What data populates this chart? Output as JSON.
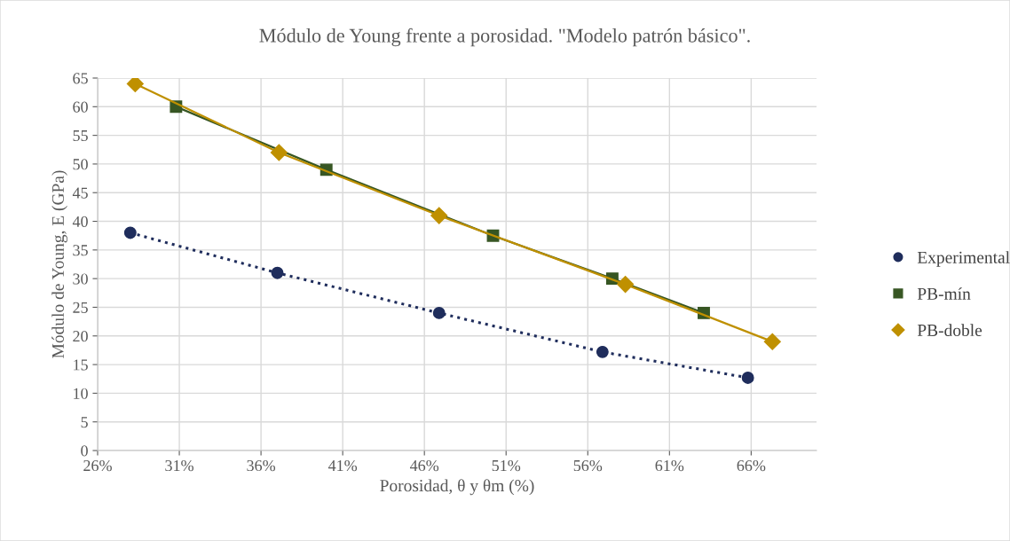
{
  "chart_data": {
    "type": "line",
    "title": "Módulo de Young frente a porosidad. \"Modelo patrón básico\".",
    "xlabel": "Porosidad, θ y θm (%)",
    "ylabel": "Módulo de Young, E (GPa)",
    "series": [
      {
        "name": "Experimental",
        "color": "#1f2d5c",
        "marker": "circle",
        "line_style": "dotted",
        "x": [
          28.0,
          37.0,
          46.9,
          56.9,
          65.8
        ],
        "values": [
          38,
          31,
          24,
          17.2,
          12.7
        ]
      },
      {
        "name": "PB-mín",
        "color": "#375623",
        "marker": "square",
        "line_style": "solid",
        "x": [
          30.8,
          40.0,
          50.2,
          57.5,
          63.1
        ],
        "values": [
          60,
          49,
          37.5,
          30,
          24
        ]
      },
      {
        "name": "PB-doble",
        "color": "#bf9000",
        "marker": "diamond",
        "line_style": "solid",
        "x": [
          28.3,
          37.1,
          46.9,
          58.3,
          67.3
        ],
        "values": [
          64,
          52,
          41,
          29,
          19
        ]
      }
    ],
    "xlim": [
      26,
      70
    ],
    "xticks": [
      {
        "value": 26,
        "label": "26%"
      },
      {
        "value": 31,
        "label": "31%"
      },
      {
        "value": 36,
        "label": "36%"
      },
      {
        "value": 41,
        "label": "41%"
      },
      {
        "value": 46,
        "label": "46%"
      },
      {
        "value": 51,
        "label": "51%"
      },
      {
        "value": 56,
        "label": "56%"
      },
      {
        "value": 61,
        "label": "61%"
      },
      {
        "value": 66,
        "label": "66%"
      }
    ],
    "ylim": [
      0,
      65
    ],
    "yticks": [
      0,
      5,
      10,
      15,
      20,
      25,
      30,
      35,
      40,
      45,
      50,
      55,
      60,
      65
    ],
    "grid": true,
    "legend": "right"
  }
}
